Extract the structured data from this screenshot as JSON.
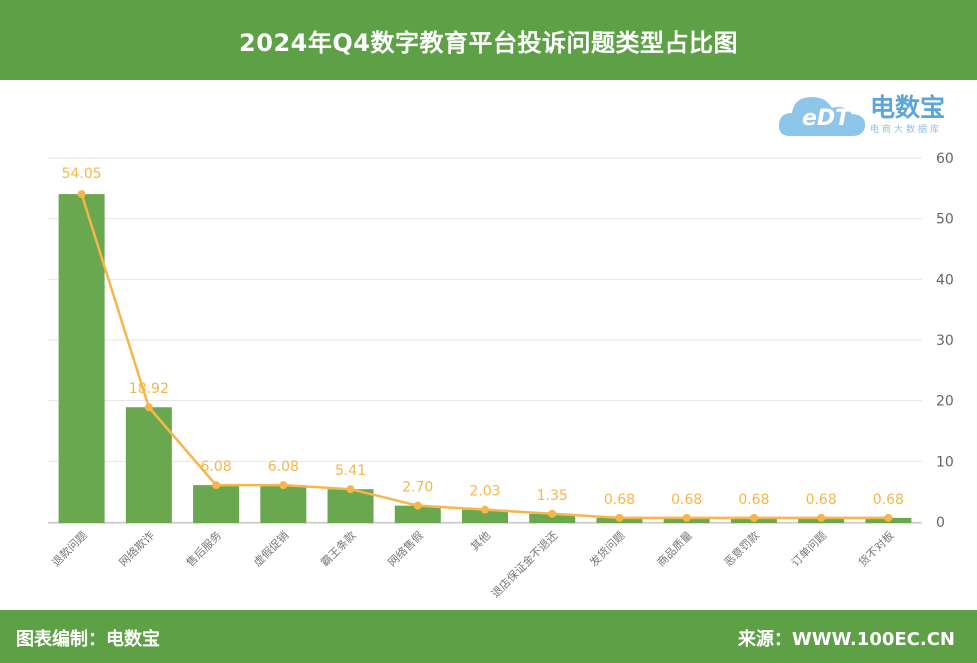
{
  "header": {
    "title": "2024年Q4数字教育平台投诉问题类型占比图"
  },
  "footer": {
    "left": "图表编制：电数宝",
    "right": "来源：WWW.100EC.CN"
  },
  "logo": {
    "mark": "eDT",
    "name": "电数宝",
    "tagline": "电商大数据库"
  },
  "colors": {
    "bar": "#6aa84f",
    "line": "#f6b64a",
    "header": "#5ea046"
  },
  "chart_data": {
    "type": "bar",
    "title": "2024年Q4数字教育平台投诉问题类型占比图",
    "categories": [
      "退款问题",
      "网络欺诈",
      "售后服务",
      "虚假促销",
      "霸王条款",
      "网络售假",
      "其他",
      "退店保证金不退还",
      "发货问题",
      "商品质量",
      "恶意罚款",
      "订单问题",
      "货不对板"
    ],
    "series": [
      {
        "type": "bar",
        "values": [
          54.05,
          18.92,
          6.08,
          6.08,
          5.41,
          2.7,
          2.03,
          1.35,
          0.68,
          0.68,
          0.68,
          0.68,
          0.68
        ]
      },
      {
        "type": "line",
        "values": [
          54.05,
          18.92,
          6.08,
          6.08,
          5.41,
          2.7,
          2.03,
          1.35,
          0.68,
          0.68,
          0.68,
          0.68,
          0.68
        ]
      }
    ],
    "data_labels": [
      "54.05",
      "18.92",
      "6.08",
      "6.08",
      "5.41",
      "2.70",
      "2.03",
      "1.35",
      "0.68",
      "0.68",
      "0.68",
      "0.68",
      "0.68"
    ],
    "ylim": [
      0,
      60
    ],
    "y_ticks": [
      0,
      10,
      20,
      30,
      40,
      50,
      60
    ],
    "y_axis_side": "right",
    "grid": true,
    "legend": "none"
  }
}
